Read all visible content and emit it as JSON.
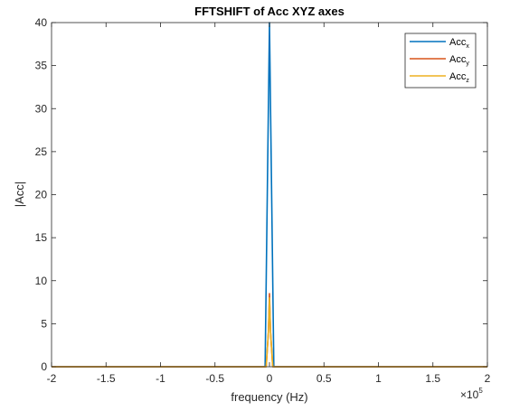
{
  "chart_data": {
    "type": "line",
    "title": "FFTSHIFT of Acc XYZ axes",
    "xlabel": "frequency (Hz)",
    "ylabel": "|Acc|",
    "x_multiplier": "×10",
    "x_multiplier_exponent": "5",
    "xlim": [
      -2,
      2
    ],
    "ylim": [
      0,
      40
    ],
    "xticks": [
      -2,
      -1.5,
      -1,
      -0.5,
      0,
      0.5,
      1,
      1.5,
      2
    ],
    "xtick_labels": [
      "-2",
      "-1.5",
      "-1",
      "-0.5",
      "0",
      "0.5",
      "1",
      "1.5",
      "2"
    ],
    "yticks": [
      0,
      5,
      10,
      15,
      20,
      25,
      30,
      35,
      40
    ],
    "ytick_labels": [
      "0",
      "5",
      "10",
      "15",
      "20",
      "25",
      "30",
      "35",
      "40"
    ],
    "grid": false,
    "legend_position": "top-right",
    "series": [
      {
        "name": "Acc",
        "subscript": "x",
        "color": "#0072BD",
        "x": [
          -2,
          -0.15,
          -0.04,
          -0.02,
          0.0,
          0.02,
          0.04,
          0.15,
          2
        ],
        "y": [
          0,
          0,
          0,
          20,
          40,
          20,
          0,
          0,
          0
        ]
      },
      {
        "name": "Acc",
        "subscript": "y",
        "color": "#D95319",
        "x": [
          -2,
          -0.15,
          -0.03,
          -0.01,
          0.0,
          0.01,
          0.03,
          0.15,
          2
        ],
        "y": [
          0,
          0,
          0,
          4,
          8.5,
          4,
          0,
          0,
          0
        ]
      },
      {
        "name": "Acc",
        "subscript": "z",
        "color": "#EDB120",
        "x": [
          -2,
          -0.15,
          -0.03,
          -0.01,
          0.0,
          0.01,
          0.03,
          0.15,
          2
        ],
        "y": [
          0,
          0,
          0,
          4,
          8,
          4,
          0,
          0,
          0
        ]
      }
    ]
  }
}
